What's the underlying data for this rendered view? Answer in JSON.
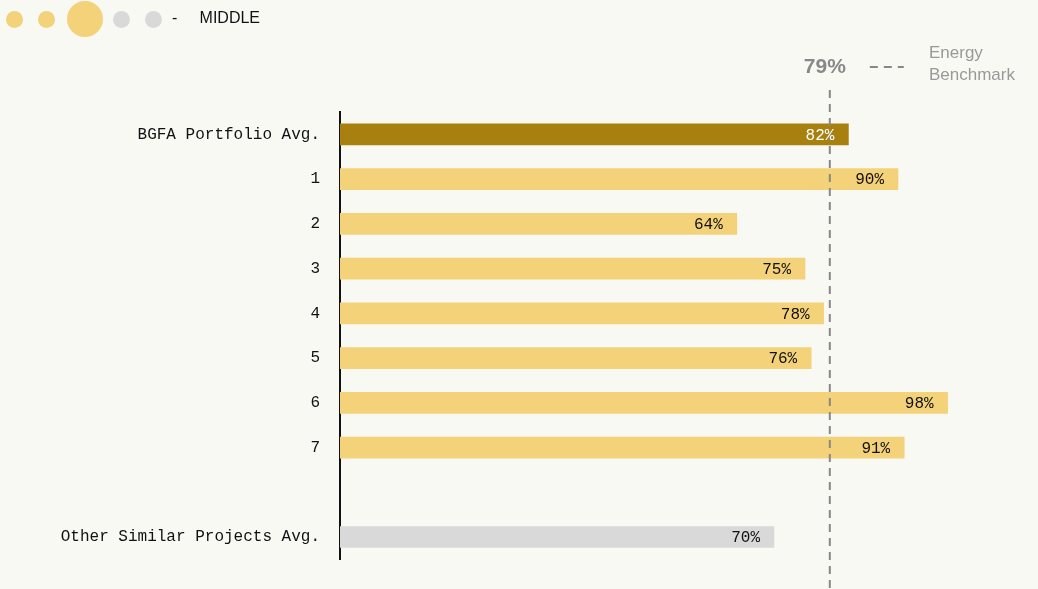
{
  "chart_data": {
    "type": "bar",
    "orientation": "horizontal",
    "categories": [
      "BGFA Portfolio Avg.",
      "1",
      "2",
      "3",
      "4",
      "5",
      "6",
      "7",
      null,
      "Other Similar Projects Avg."
    ],
    "values": [
      82,
      90,
      64,
      75,
      78,
      76,
      98,
      91,
      null,
      70
    ],
    "colors": [
      "#a8800f",
      "#f3d27a",
      "#f3d27a",
      "#f3d27a",
      "#f3d27a",
      "#f3d27a",
      "#f3d27a",
      "#f3d27a",
      "#f3d27a",
      "#d9d9d9"
    ],
    "value_labels": [
      "82%",
      "90%",
      "64%",
      "75%",
      "78%",
      "76%",
      "98%",
      "91%",
      null,
      "70%"
    ],
    "tick_labels": "y",
    "legend": false,
    "ref_lines": [
      {
        "axis": "x",
        "value": 79,
        "label": "79%",
        "color": "#888888",
        "line_style": "dashed"
      }
    ],
    "annotations": [
      "- MIDDLE",
      "Energy Benchmark"
    ]
  }
}
